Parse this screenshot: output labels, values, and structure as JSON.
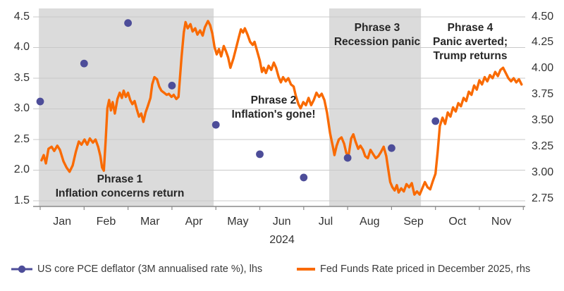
{
  "chart_data": {
    "type": "line",
    "title": "",
    "x_axis": {
      "labels": [
        "Jan",
        "Feb",
        "Mar",
        "Apr",
        "May",
        "Jun",
        "Jul",
        "Aug",
        "Sep",
        "Oct",
        "Nov"
      ],
      "year": "2024"
    },
    "left_axis": {
      "labels": [
        "4.5",
        "4.0",
        "3.5",
        "3.0",
        "2.5",
        "2.0",
        "1.5"
      ],
      "values": [
        4.5,
        4.0,
        3.5,
        3.0,
        2.5,
        2.0,
        1.5
      ],
      "min": 1.5,
      "max": 4.5
    },
    "right_axis": {
      "labels": [
        "4.50",
        "4.25",
        "4.00",
        "3.75",
        "3.50",
        "3.25",
        "3.00",
        "2.75"
      ],
      "values": [
        4.5,
        4.25,
        4.0,
        3.75,
        3.5,
        3.25,
        3.0,
        2.75
      ],
      "min": 2.75,
      "max": 4.5
    },
    "grid": true,
    "legend_position": "bottom",
    "phases": [
      {
        "label_lines": [
          "Phrase 1",
          "Inflation concerns return"
        ],
        "shaded": true,
        "band_start_month": -0.03,
        "band_end_month": 3.95
      },
      {
        "label_lines": [
          "Phrase 2",
          "Inflation's gone!"
        ],
        "shaded": false
      },
      {
        "label_lines": [
          "Phrase 3",
          "Recession panic"
        ],
        "shaded": true,
        "band_start_month": 6.58,
        "band_end_month": 8.67
      },
      {
        "label_lines": [
          "Phrase 4",
          "Panic averted;",
          "Trump returns"
        ],
        "shaded": false
      }
    ],
    "series": [
      {
        "name": "US core PCE deflator (3M annualised rate %), lhs",
        "type": "scatter",
        "axis": "left",
        "color": "#4D4D99",
        "x_months": [
          0,
          1,
          2,
          3,
          4,
          5,
          6,
          7,
          8,
          9
        ],
        "values": [
          3.12,
          3.74,
          4.4,
          3.38,
          2.74,
          2.26,
          1.88,
          2.2,
          2.36,
          2.8
        ]
      },
      {
        "name": "Fed Funds Rate priced in December 2025, rhs",
        "type": "line",
        "axis": "right",
        "color": "#F96A02",
        "points": [
          [
            0.03,
            3.12
          ],
          [
            0.08,
            3.17
          ],
          [
            0.13,
            3.09
          ],
          [
            0.19,
            3.23
          ],
          [
            0.26,
            3.25
          ],
          [
            0.32,
            3.21
          ],
          [
            0.39,
            3.26
          ],
          [
            0.45,
            3.22
          ],
          [
            0.53,
            3.11
          ],
          [
            0.6,
            3.05
          ],
          [
            0.67,
            3.01
          ],
          [
            0.74,
            3.07
          ],
          [
            0.81,
            3.2
          ],
          [
            0.88,
            3.3
          ],
          [
            0.94,
            3.27
          ],
          [
            1.01,
            3.32
          ],
          [
            1.07,
            3.27
          ],
          [
            1.13,
            3.33
          ],
          [
            1.2,
            3.29
          ],
          [
            1.26,
            3.32
          ],
          [
            1.32,
            3.25
          ],
          [
            1.37,
            3.16
          ],
          [
            1.41,
            3.05
          ],
          [
            1.45,
            3.02
          ],
          [
            1.49,
            3.3
          ],
          [
            1.53,
            3.62
          ],
          [
            1.57,
            3.7
          ],
          [
            1.61,
            3.6
          ],
          [
            1.65,
            3.68
          ],
          [
            1.7,
            3.57
          ],
          [
            1.76,
            3.71
          ],
          [
            1.81,
            3.77
          ],
          [
            1.86,
            3.72
          ],
          [
            1.9,
            3.79
          ],
          [
            1.95,
            3.73
          ],
          [
            2.0,
            3.77
          ],
          [
            2.05,
            3.7
          ],
          [
            2.1,
            3.66
          ],
          [
            2.15,
            3.69
          ],
          [
            2.2,
            3.61
          ],
          [
            2.25,
            3.54
          ],
          [
            2.3,
            3.57
          ],
          [
            2.35,
            3.49
          ],
          [
            2.4,
            3.58
          ],
          [
            2.45,
            3.64
          ],
          [
            2.51,
            3.72
          ],
          [
            2.55,
            3.85
          ],
          [
            2.6,
            3.92
          ],
          [
            2.66,
            3.9
          ],
          [
            2.71,
            3.83
          ],
          [
            2.76,
            3.79
          ],
          [
            2.82,
            3.77
          ],
          [
            2.88,
            3.75
          ],
          [
            2.93,
            3.76
          ],
          [
            2.99,
            3.73
          ],
          [
            3.04,
            3.75
          ],
          [
            3.1,
            3.71
          ],
          [
            3.15,
            3.73
          ],
          [
            3.18,
            3.9
          ],
          [
            3.22,
            4.12
          ],
          [
            3.27,
            4.35
          ],
          [
            3.31,
            4.45
          ],
          [
            3.36,
            4.39
          ],
          [
            3.42,
            4.43
          ],
          [
            3.47,
            4.36
          ],
          [
            3.53,
            4.39
          ],
          [
            3.58,
            4.33
          ],
          [
            3.64,
            4.37
          ],
          [
            3.7,
            4.32
          ],
          [
            3.75,
            4.4
          ],
          [
            3.82,
            4.46
          ],
          [
            3.87,
            4.42
          ],
          [
            3.92,
            4.34
          ],
          [
            3.97,
            4.21
          ],
          [
            4.02,
            4.14
          ],
          [
            4.07,
            4.19
          ],
          [
            4.12,
            4.12
          ],
          [
            4.18,
            4.22
          ],
          [
            4.23,
            4.17
          ],
          [
            4.28,
            4.11
          ],
          [
            4.33,
            4.01
          ],
          [
            4.4,
            4.1
          ],
          [
            4.46,
            4.2
          ],
          [
            4.52,
            4.3
          ],
          [
            4.57,
            4.38
          ],
          [
            4.62,
            4.35
          ],
          [
            4.66,
            4.39
          ],
          [
            4.72,
            4.33
          ],
          [
            4.78,
            4.26
          ],
          [
            4.84,
            4.23
          ],
          [
            4.88,
            4.26
          ],
          [
            4.94,
            4.17
          ],
          [
            5.0,
            4.08
          ],
          [
            5.05,
            3.97
          ],
          [
            5.09,
            4.01
          ],
          [
            5.14,
            3.96
          ],
          [
            5.2,
            4.03
          ],
          [
            5.26,
            3.99
          ],
          [
            5.32,
            4.06
          ],
          [
            5.37,
            4.01
          ],
          [
            5.43,
            3.92
          ],
          [
            5.48,
            3.87
          ],
          [
            5.53,
            3.92
          ],
          [
            5.59,
            3.88
          ],
          [
            5.65,
            3.91
          ],
          [
            5.71,
            3.85
          ],
          [
            5.77,
            3.83
          ],
          [
            5.82,
            3.74
          ],
          [
            5.88,
            3.66
          ],
          [
            5.93,
            3.62
          ],
          [
            5.99,
            3.68
          ],
          [
            6.05,
            3.65
          ],
          [
            6.11,
            3.72
          ],
          [
            6.17,
            3.65
          ],
          [
            6.23,
            3.7
          ],
          [
            6.29,
            3.77
          ],
          [
            6.35,
            3.73
          ],
          [
            6.41,
            3.76
          ],
          [
            6.47,
            3.7
          ],
          [
            6.53,
            3.58
          ],
          [
            6.6,
            3.38
          ],
          [
            6.67,
            3.24
          ],
          [
            6.7,
            3.17
          ],
          [
            6.75,
            3.26
          ],
          [
            6.8,
            3.32
          ],
          [
            6.86,
            3.34
          ],
          [
            6.92,
            3.28
          ],
          [
            6.97,
            3.19
          ],
          [
            7.02,
            3.16
          ],
          [
            7.08,
            3.33
          ],
          [
            7.13,
            3.37
          ],
          [
            7.18,
            3.3
          ],
          [
            7.24,
            3.23
          ],
          [
            7.29,
            3.26
          ],
          [
            7.35,
            3.22
          ],
          [
            7.4,
            3.16
          ],
          [
            7.46,
            3.14
          ],
          [
            7.52,
            3.22
          ],
          [
            7.58,
            3.18
          ],
          [
            7.64,
            3.14
          ],
          [
            7.7,
            3.16
          ],
          [
            7.76,
            3.2
          ],
          [
            7.82,
            3.25
          ],
          [
            7.88,
            3.16
          ],
          [
            7.93,
            3.02
          ],
          [
            7.97,
            2.91
          ],
          [
            8.02,
            2.86
          ],
          [
            8.07,
            2.83
          ],
          [
            8.12,
            2.88
          ],
          [
            8.16,
            2.81
          ],
          [
            8.22,
            2.85
          ],
          [
            8.28,
            2.82
          ],
          [
            8.34,
            2.89
          ],
          [
            8.4,
            2.86
          ],
          [
            8.46,
            2.9
          ],
          [
            8.52,
            2.79
          ],
          [
            8.58,
            2.82
          ],
          [
            8.64,
            2.79
          ],
          [
            8.7,
            2.85
          ],
          [
            8.76,
            2.91
          ],
          [
            8.82,
            2.86
          ],
          [
            8.88,
            2.84
          ],
          [
            8.94,
            2.92
          ],
          [
            9.0,
            2.99
          ],
          [
            9.05,
            3.2
          ],
          [
            9.1,
            3.45
          ],
          [
            9.16,
            3.53
          ],
          [
            9.22,
            3.47
          ],
          [
            9.28,
            3.58
          ],
          [
            9.34,
            3.54
          ],
          [
            9.4,
            3.63
          ],
          [
            9.46,
            3.59
          ],
          [
            9.52,
            3.67
          ],
          [
            9.58,
            3.64
          ],
          [
            9.64,
            3.72
          ],
          [
            9.7,
            3.69
          ],
          [
            9.76,
            3.78
          ],
          [
            9.82,
            3.75
          ],
          [
            9.88,
            3.84
          ],
          [
            9.94,
            3.8
          ],
          [
            10.0,
            3.89
          ],
          [
            10.06,
            3.85
          ],
          [
            10.12,
            3.92
          ],
          [
            10.18,
            3.88
          ],
          [
            10.24,
            3.94
          ],
          [
            10.3,
            3.91
          ],
          [
            10.36,
            3.97
          ],
          [
            10.42,
            3.93
          ],
          [
            10.48,
            3.99
          ],
          [
            10.54,
            4.01
          ],
          [
            10.6,
            3.96
          ],
          [
            10.66,
            3.91
          ],
          [
            10.72,
            3.88
          ],
          [
            10.78,
            3.91
          ],
          [
            10.84,
            3.87
          ],
          [
            10.9,
            3.9
          ],
          [
            10.96,
            3.85
          ]
        ]
      }
    ]
  },
  "legend": {
    "pce_label": "US core PCE deflator (3M annualised rate %), lhs",
    "fed_label": "Fed Funds Rate priced in December 2025, rhs"
  },
  "colors": {
    "orange": "#F96A02",
    "purple": "#4D4D99",
    "band": "#DBDBDB",
    "grid": "#C9C9C9",
    "axis": "#8A8A8A",
    "tick_text": "#333333",
    "annotation_text": "#262626"
  }
}
